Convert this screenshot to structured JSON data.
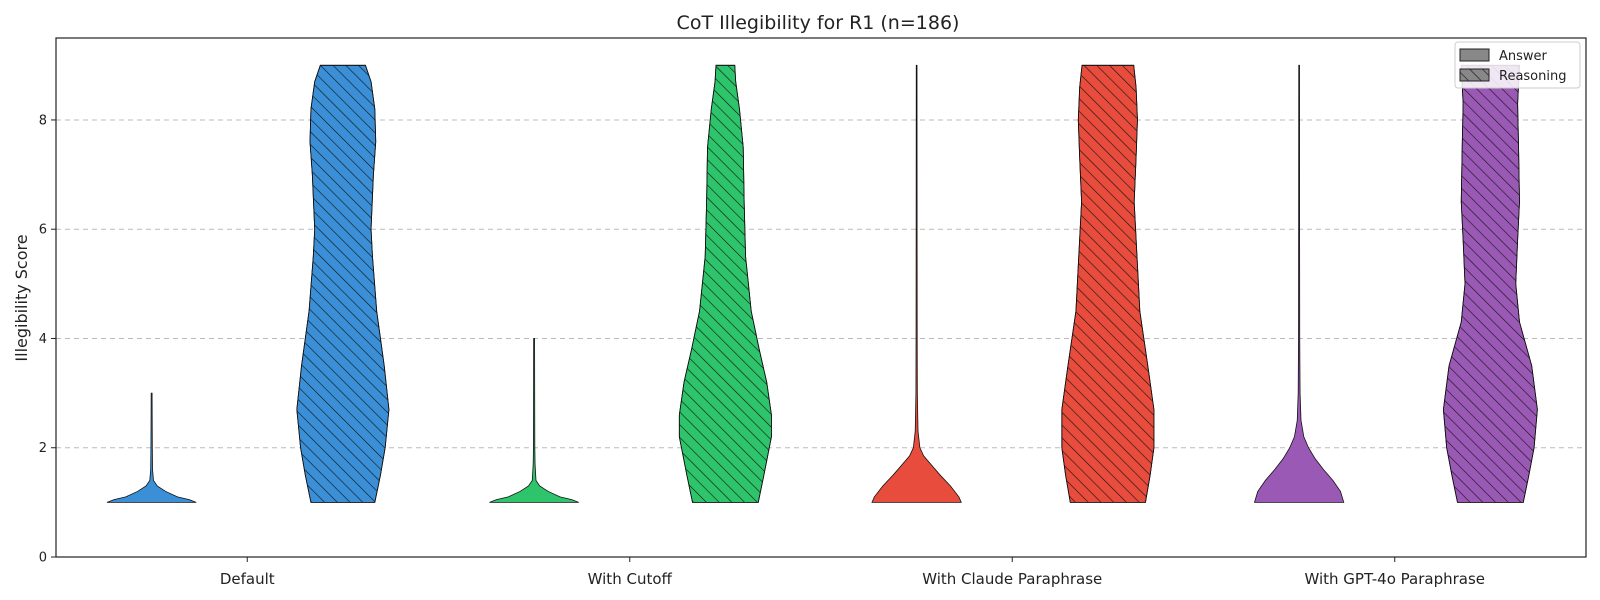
{
  "chart_data": {
    "type": "violin",
    "title": "CoT Illegibility for R1 (n=186)",
    "xlabel": "",
    "ylabel": "Illegibility Score",
    "ylim": [
      0,
      9.5
    ],
    "yticks": [
      0,
      2,
      4,
      6,
      8
    ],
    "grid": "y-dashed",
    "legend_position": "top-right",
    "legend": [
      {
        "label": "Answer",
        "style": "solid"
      },
      {
        "label": "Reasoning",
        "style": "hatched"
      }
    ],
    "categories": [
      "Default",
      "With Cutoff",
      "With Claude Paraphrase",
      "With GPT-4o Paraphrase"
    ],
    "colors": [
      "#3a8fd6",
      "#2ec46b",
      "#e74c3c",
      "#9b59b6"
    ],
    "series": [
      {
        "name": "Answer",
        "violins": [
          {
            "min": 1,
            "max": 3,
            "profile": [
              [
                1.0,
                0.95
              ],
              [
                1.05,
                0.8
              ],
              [
                1.1,
                0.55
              ],
              [
                1.2,
                0.3
              ],
              [
                1.3,
                0.12
              ],
              [
                1.4,
                0.04
              ],
              [
                1.6,
                0.02
              ],
              [
                2.0,
                0.015
              ],
              [
                2.5,
                0.012
              ],
              [
                3.0,
                0.01
              ]
            ]
          },
          {
            "min": 1,
            "max": 4,
            "profile": [
              [
                1.0,
                0.95
              ],
              [
                1.05,
                0.8
              ],
              [
                1.1,
                0.55
              ],
              [
                1.2,
                0.3
              ],
              [
                1.3,
                0.12
              ],
              [
                1.4,
                0.04
              ],
              [
                1.7,
                0.02
              ],
              [
                2.0,
                0.015
              ],
              [
                3.0,
                0.012
              ],
              [
                4.0,
                0.01
              ]
            ]
          },
          {
            "min": 1,
            "max": 9,
            "profile": [
              [
                1.0,
                0.95
              ],
              [
                1.1,
                0.9
              ],
              [
                1.3,
                0.72
              ],
              [
                1.5,
                0.5
              ],
              [
                1.7,
                0.3
              ],
              [
                1.85,
                0.15
              ],
              [
                2.0,
                0.07
              ],
              [
                2.3,
                0.03
              ],
              [
                3.0,
                0.015
              ],
              [
                4.0,
                0.012
              ],
              [
                6.0,
                0.01
              ],
              [
                9.0,
                0.008
              ]
            ]
          },
          {
            "min": 1,
            "max": 9,
            "profile": [
              [
                1.0,
                0.95
              ],
              [
                1.2,
                0.88
              ],
              [
                1.4,
                0.72
              ],
              [
                1.6,
                0.52
              ],
              [
                1.8,
                0.34
              ],
              [
                2.0,
                0.2
              ],
              [
                2.2,
                0.1
              ],
              [
                2.5,
                0.04
              ],
              [
                3.0,
                0.02
              ],
              [
                4.0,
                0.013
              ],
              [
                6.0,
                0.01
              ],
              [
                9.0,
                0.008
              ]
            ]
          }
        ]
      },
      {
        "name": "Reasoning",
        "violins": [
          {
            "min": 1,
            "max": 9,
            "profile": [
              [
                1.0,
                0.68
              ],
              [
                1.5,
                0.8
              ],
              [
                2.0,
                0.9
              ],
              [
                2.7,
                0.98
              ],
              [
                3.5,
                0.88
              ],
              [
                4.5,
                0.72
              ],
              [
                5.5,
                0.63
              ],
              [
                6.0,
                0.6
              ],
              [
                7.0,
                0.65
              ],
              [
                7.6,
                0.7
              ],
              [
                8.2,
                0.68
              ],
              [
                8.7,
                0.6
              ],
              [
                9.0,
                0.48
              ]
            ]
          },
          {
            "min": 1,
            "max": 9,
            "profile": [
              [
                1.0,
                0.7
              ],
              [
                1.5,
                0.82
              ],
              [
                2.2,
                0.98
              ],
              [
                2.6,
                0.98
              ],
              [
                3.2,
                0.88
              ],
              [
                3.8,
                0.72
              ],
              [
                4.5,
                0.55
              ],
              [
                5.5,
                0.43
              ],
              [
                6.5,
                0.4
              ],
              [
                7.5,
                0.38
              ],
              [
                8.2,
                0.3
              ],
              [
                8.7,
                0.22
              ],
              [
                9.0,
                0.2
              ]
            ]
          },
          {
            "min": 1,
            "max": 9,
            "profile": [
              [
                1.0,
                0.8
              ],
              [
                1.5,
                0.9
              ],
              [
                2.0,
                0.98
              ],
              [
                2.7,
                0.98
              ],
              [
                3.5,
                0.85
              ],
              [
                4.5,
                0.68
              ],
              [
                5.5,
                0.62
              ],
              [
                6.5,
                0.56
              ],
              [
                7.3,
                0.6
              ],
              [
                8.0,
                0.63
              ],
              [
                8.6,
                0.6
              ],
              [
                9.0,
                0.55
              ]
            ]
          },
          {
            "min": 1,
            "max": 9,
            "profile": [
              [
                1.0,
                0.7
              ],
              [
                1.5,
                0.82
              ],
              [
                2.0,
                0.93
              ],
              [
                2.7,
                1.0
              ],
              [
                3.5,
                0.88
              ],
              [
                4.3,
                0.62
              ],
              [
                5.0,
                0.54
              ],
              [
                5.8,
                0.58
              ],
              [
                6.5,
                0.62
              ],
              [
                7.5,
                0.6
              ],
              [
                8.3,
                0.58
              ],
              [
                9.0,
                0.62
              ]
            ]
          }
        ]
      }
    ]
  }
}
